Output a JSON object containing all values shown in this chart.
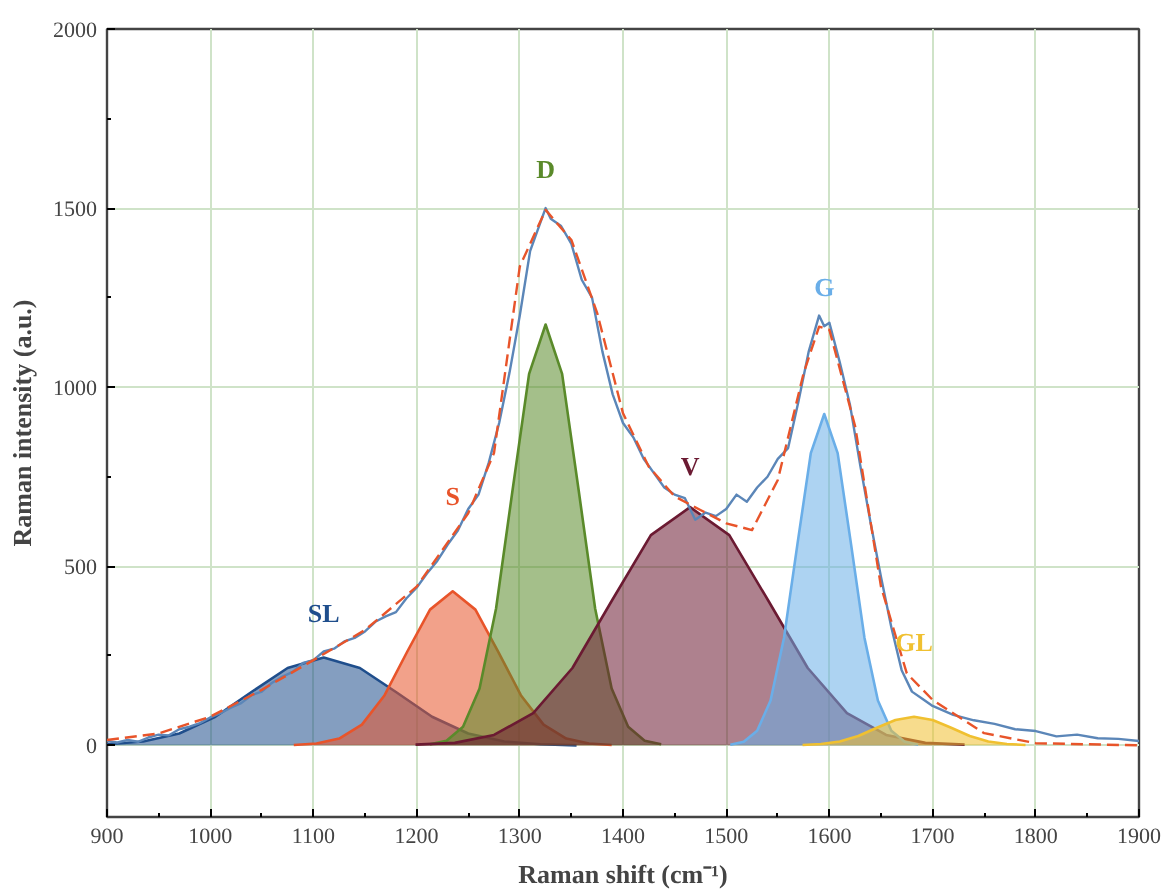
{
  "chart_data": {
    "type": "area",
    "xlabel": "Raman shift (cm⁻¹)",
    "ylabel": "Raman intensity (a.u.)",
    "xlim": [
      900,
      1900
    ],
    "xticks": [
      900,
      1000,
      1100,
      1200,
      1300,
      1400,
      1500,
      1600,
      1700,
      1800,
      1900
    ],
    "ylim": [
      -200,
      2000
    ],
    "yticks": [
      0,
      500,
      1000,
      1500,
      2000
    ],
    "grid": true,
    "series": [
      {
        "name": "SL",
        "color": "#1f4e8c",
        "x": [
          900,
          935,
          970,
          1005,
          1040,
          1075,
          1110,
          1145,
          1180,
          1215,
          1250,
          1285,
          1320,
          1355
        ],
        "values": [
          3,
          11,
          33,
          80,
          149,
          216,
          245,
          216,
          149,
          80,
          33,
          11,
          3,
          0
        ]
      },
      {
        "name": "S",
        "color": "#e8542a",
        "x": [
          1081,
          1103,
          1125,
          1147,
          1169,
          1191,
          1213,
          1235,
          1257,
          1279,
          1301,
          1323,
          1345,
          1367,
          1389
        ],
        "values": [
          1,
          5,
          19,
          58,
          140,
          262,
          379,
          430,
          379,
          262,
          140,
          58,
          19,
          5,
          1
        ]
      },
      {
        "name": "D",
        "color": "#5a8a2a",
        "x": [
          1213,
          1229,
          1245,
          1261,
          1277,
          1293,
          1309,
          1325,
          1341,
          1357,
          1373,
          1389,
          1405,
          1421,
          1437
        ],
        "values": [
          3,
          13,
          52,
          159,
          382,
          713,
          1037,
          1175,
          1037,
          713,
          382,
          159,
          52,
          13,
          3
        ]
      },
      {
        "name": "V",
        "color": "#6b1a32",
        "x": [
          1199,
          1237,
          1275,
          1313,
          1351,
          1389,
          1427,
          1465,
          1503,
          1541,
          1579,
          1617,
          1655,
          1693,
          1731
        ],
        "values": [
          2,
          7,
          29,
          90,
          216,
          403,
          587,
          665,
          587,
          403,
          216,
          90,
          29,
          7,
          2
        ]
      },
      {
        "name": "G",
        "color": "#6aaee8",
        "x": [
          1504,
          1517,
          1530,
          1543,
          1556,
          1569,
          1582,
          1595,
          1608,
          1621,
          1634,
          1647,
          1660,
          1673,
          1686
        ],
        "values": [
          2,
          10,
          41,
          125,
          300,
          561,
          816,
          925,
          816,
          561,
          300,
          125,
          41,
          10,
          2
        ]
      },
      {
        "name": "GL",
        "color": "#f0c030",
        "x": [
          1574,
          1592,
          1610,
          1628,
          1646,
          1664,
          1682,
          1700,
          1718,
          1736,
          1754,
          1772,
          1790
        ],
        "values": [
          1,
          4,
          11,
          26,
          49,
          71,
          80,
          71,
          49,
          26,
          11,
          4,
          1
        ]
      },
      {
        "type": "line",
        "color": "#5b86b8",
        "line_style": "solid",
        "x": [
          900,
          910,
          920,
          930,
          940,
          950,
          960,
          970,
          980,
          990,
          1000,
          1010,
          1020,
          1030,
          1040,
          1050,
          1060,
          1070,
          1080,
          1090,
          1100,
          1110,
          1120,
          1130,
          1140,
          1150,
          1160,
          1170,
          1180,
          1190,
          1200,
          1210,
          1220,
          1230,
          1240,
          1250,
          1260,
          1270,
          1280,
          1290,
          1300,
          1310,
          1320,
          1325,
          1330,
          1340,
          1350,
          1360,
          1370,
          1380,
          1390,
          1400,
          1410,
          1420,
          1430,
          1440,
          1450,
          1460,
          1470,
          1480,
          1490,
          1500,
          1510,
          1520,
          1530,
          1540,
          1550,
          1560,
          1570,
          1580,
          1590,
          1595,
          1600,
          1610,
          1620,
          1630,
          1640,
          1650,
          1660,
          1670,
          1680,
          1690,
          1700,
          1720,
          1740,
          1760,
          1780,
          1800,
          1820,
          1840,
          1860,
          1880,
          1900
        ],
        "values": [
          12,
          8,
          15,
          10,
          22,
          30,
          28,
          45,
          52,
          62,
          78,
          90,
          105,
          118,
          140,
          150,
          175,
          192,
          205,
          230,
          238,
          262,
          270,
          290,
          300,
          318,
          345,
          360,
          372,
          410,
          440,
          480,
          515,
          560,
          600,
          660,
          700,
          790,
          900,
          1040,
          1200,
          1380,
          1460,
          1500,
          1470,
          1450,
          1400,
          1300,
          1250,
          1100,
          980,
          900,
          860,
          800,
          760,
          720,
          700,
          690,
          630,
          650,
          640,
          660,
          700,
          680,
          720,
          750,
          800,
          830,
          960,
          1100,
          1200,
          1170,
          1180,
          1070,
          950,
          780,
          620,
          470,
          330,
          210,
          150,
          130,
          110,
          85,
          70,
          60,
          45,
          40,
          25,
          30,
          20,
          18,
          12
        ]
      },
      {
        "type": "line",
        "color": "#e8542a",
        "line_style": "dashed",
        "x": [
          900,
          950,
          1000,
          1050,
          1100,
          1150,
          1200,
          1250,
          1275,
          1300,
          1325,
          1350,
          1375,
          1400,
          1425,
          1450,
          1475,
          1500,
          1525,
          1550,
          1575,
          1590,
          1600,
          1625,
          1650,
          1675,
          1700,
          1750,
          1800,
          1900
        ],
        "values": [
          15,
          33,
          80,
          155,
          238,
          322,
          443,
          648,
          816,
          1337,
          1495,
          1411,
          1207,
          927,
          778,
          695,
          657,
          620,
          601,
          741,
          1039,
          1169,
          1160,
          890,
          443,
          201,
          127,
          34,
          6,
          0
        ]
      }
    ]
  }
}
